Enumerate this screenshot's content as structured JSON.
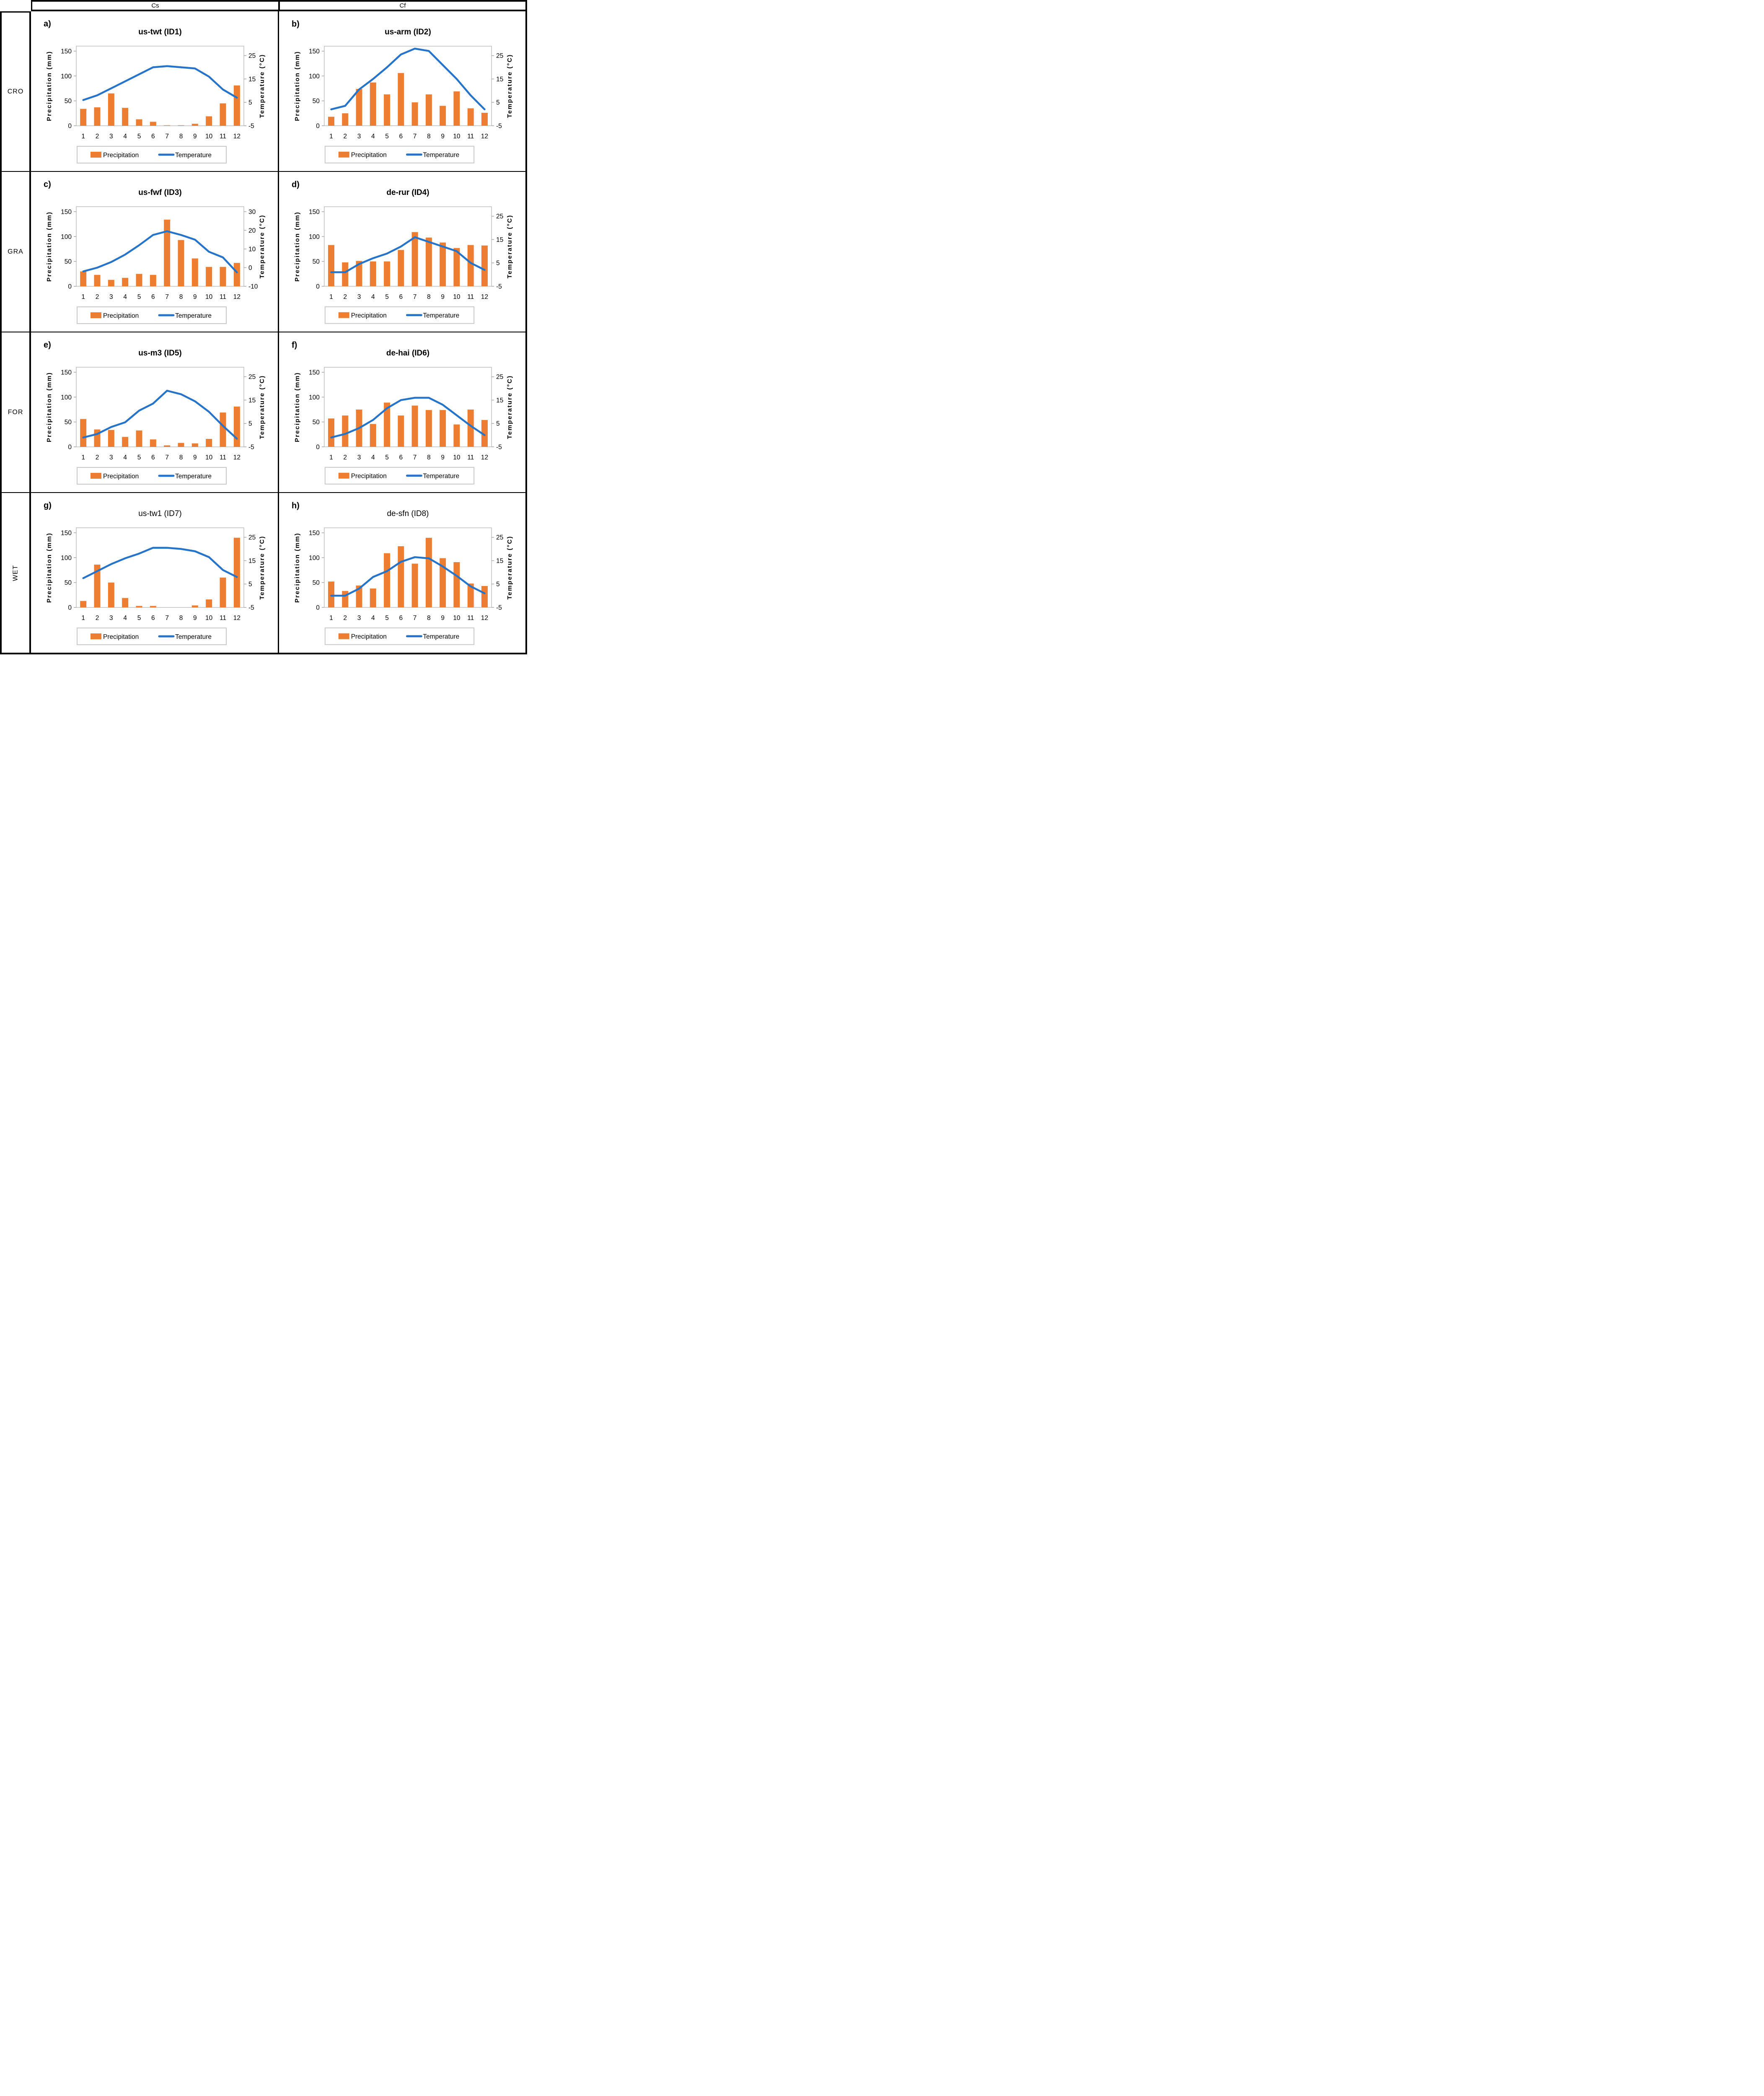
{
  "figure": {
    "col_headers": [
      "Cs",
      "Cf"
    ],
    "row_labels": [
      "CRO",
      "GRA",
      "FOR",
      "WET"
    ],
    "colors": {
      "bar_orange": "#ED7D31",
      "line_blue": "#2574C9",
      "plot_border_gray": "#BFBFBF",
      "tick_mark_gray": "#A6A6A6",
      "legend_border_gray": "#C9C9C9",
      "table_border_black": "#000000"
    },
    "legend": {
      "precipitation_label": "Precipitation",
      "temperature_label": "Temperature"
    },
    "axis_labels": {
      "left": "Precipitation (mm)",
      "right": "Temperature (°C)"
    }
  },
  "chart_data": [
    {
      "type": "bar+line",
      "panel": "a)",
      "title": "us-twt (ID1)",
      "title_bold": true,
      "row": 0,
      "col": 0,
      "categories": [
        1,
        2,
        3,
        4,
        5,
        6,
        7,
        8,
        9,
        10,
        11,
        12
      ],
      "series": [
        {
          "name": "Precipitation",
          "unit": "mm",
          "values": [
            34,
            37,
            65,
            36,
            13,
            8,
            1,
            1,
            4,
            19,
            45,
            81
          ]
        },
        {
          "name": "Temperature",
          "unit": "°C",
          "values": [
            6,
            8,
            11,
            14,
            17,
            20,
            20.5,
            20,
            19.5,
            16,
            10.5,
            7
          ]
        }
      ],
      "left_ticks": [
        0,
        50,
        100,
        150
      ],
      "right_ticks": [
        -5,
        5,
        15,
        25
      ],
      "ylim_mm": [
        0,
        160
      ],
      "right_axis_map": {
        "deg_at_0mm": -5,
        "mm_per_deg": 4.7
      },
      "grid": false,
      "legend_position": "bottom"
    },
    {
      "type": "bar+line",
      "panel": "b)",
      "title": "us-arm (ID2)",
      "title_bold": true,
      "row": 0,
      "col": 1,
      "categories": [
        1,
        2,
        3,
        4,
        5,
        6,
        7,
        8,
        9,
        10,
        11,
        12
      ],
      "series": [
        {
          "name": "Precipitation",
          "unit": "mm",
          "values": [
            18,
            25,
            74,
            87,
            63,
            106,
            47,
            63,
            40,
            69,
            35,
            26
          ]
        },
        {
          "name": "Temperature",
          "unit": "°C",
          "values": [
            2,
            3.5,
            10.5,
            15,
            20,
            25.5,
            28,
            27,
            21,
            15,
            8,
            2
          ]
        }
      ],
      "left_ticks": [
        0,
        50,
        100,
        150
      ],
      "right_ticks": [
        -5,
        5,
        15,
        25
      ],
      "ylim_mm": [
        0,
        160
      ],
      "right_axis_map": {
        "deg_at_0mm": -5,
        "mm_per_deg": 4.7
      },
      "grid": false,
      "legend_position": "bottom"
    },
    {
      "type": "bar+line",
      "panel": "c)",
      "title": "us-fwf (ID3)",
      "title_bold": true,
      "row": 1,
      "col": 0,
      "categories": [
        1,
        2,
        3,
        4,
        5,
        6,
        7,
        8,
        9,
        10,
        11,
        12
      ],
      "series": [
        {
          "name": "Precipitation",
          "unit": "mm",
          "values": [
            30,
            23,
            13,
            17,
            25,
            23,
            134,
            93,
            56,
            39,
            39,
            47
          ]
        },
        {
          "name": "Temperature",
          "unit": "°C",
          "values": [
            -2,
            0,
            3,
            7,
            12,
            17.5,
            19.5,
            17.5,
            15,
            8.5,
            5.5,
            -2.5
          ]
        }
      ],
      "left_ticks": [
        0,
        50,
        100,
        150
      ],
      "right_ticks": [
        -10,
        0,
        10,
        20,
        30
      ],
      "ylim_mm": [
        0,
        160
      ],
      "right_axis_map": {
        "deg_at_0mm": -10,
        "mm_per_deg": 3.75
      },
      "grid": false,
      "legend_position": "bottom"
    },
    {
      "type": "bar+line",
      "panel": "d)",
      "title": "de-rur (ID4)",
      "title_bold": true,
      "row": 1,
      "col": 1,
      "categories": [
        1,
        2,
        3,
        4,
        5,
        6,
        7,
        8,
        9,
        10,
        11,
        12
      ],
      "series": [
        {
          "name": "Precipitation",
          "unit": "mm",
          "values": [
            83,
            48,
            51,
            50,
            50,
            73,
            109,
            98,
            88,
            77,
            83,
            82
          ]
        },
        {
          "name": "Temperature",
          "unit": "°C",
          "values": [
            1,
            1,
            4.5,
            7,
            9,
            12,
            16,
            14,
            12,
            10,
            5,
            2
          ]
        }
      ],
      "left_ticks": [
        0,
        50,
        100,
        150
      ],
      "right_ticks": [
        -5,
        5,
        15,
        25
      ],
      "ylim_mm": [
        0,
        160
      ],
      "right_axis_map": {
        "deg_at_0mm": -5,
        "mm_per_deg": 4.7
      },
      "grid": false,
      "legend_position": "bottom"
    },
    {
      "type": "bar+line",
      "panel": "e)",
      "title": "us-m3 (ID5)",
      "title_bold": true,
      "row": 2,
      "col": 0,
      "categories": [
        1,
        2,
        3,
        4,
        5,
        6,
        7,
        8,
        9,
        10,
        11,
        12
      ],
      "series": [
        {
          "name": "Precipitation",
          "unit": "mm",
          "values": [
            56,
            35,
            34,
            20,
            33,
            15,
            3,
            8,
            7,
            16,
            69,
            81
          ]
        },
        {
          "name": "Temperature",
          "unit": "°C",
          "values": [
            -1,
            0.5,
            3.5,
            5.5,
            10.5,
            13.5,
            19,
            17.5,
            14.5,
            10,
            4,
            -1.5
          ]
        }
      ],
      "left_ticks": [
        0,
        50,
        100,
        150
      ],
      "right_ticks": [
        -5,
        5,
        15,
        25
      ],
      "ylim_mm": [
        0,
        160
      ],
      "right_axis_map": {
        "deg_at_0mm": -5,
        "mm_per_deg": 4.7
      },
      "grid": false,
      "legend_position": "bottom"
    },
    {
      "type": "bar+line",
      "panel": "f)",
      "title": "de-hai (ID6)",
      "title_bold": true,
      "row": 2,
      "col": 1,
      "categories": [
        1,
        2,
        3,
        4,
        5,
        6,
        7,
        8,
        9,
        10,
        11,
        12
      ],
      "series": [
        {
          "name": "Precipitation",
          "unit": "mm",
          "values": [
            57,
            63,
            75,
            46,
            89,
            63,
            83,
            74,
            74,
            45,
            75,
            54
          ]
        },
        {
          "name": "Temperature",
          "unit": "°C",
          "values": [
            -1,
            0.5,
            3,
            6.5,
            11.5,
            15,
            16,
            16,
            13,
            8.5,
            4,
            0
          ]
        }
      ],
      "left_ticks": [
        0,
        50,
        100,
        150
      ],
      "right_ticks": [
        -5,
        5,
        15,
        25
      ],
      "ylim_mm": [
        0,
        160
      ],
      "right_axis_map": {
        "deg_at_0mm": -5,
        "mm_per_deg": 4.7
      },
      "grid": false,
      "legend_position": "bottom"
    },
    {
      "type": "bar+line",
      "panel": "g)",
      "title": "us-tw1 (ID7)",
      "title_bold": false,
      "row": 3,
      "col": 0,
      "categories": [
        1,
        2,
        3,
        4,
        5,
        6,
        7,
        8,
        9,
        10,
        11,
        12
      ],
      "series": [
        {
          "name": "Precipitation",
          "unit": "mm",
          "values": [
            13,
            86,
            50,
            19,
            3,
            3,
            0,
            0,
            4,
            16,
            60,
            140
          ]
        },
        {
          "name": "Temperature",
          "unit": "°C",
          "values": [
            7.5,
            10.5,
            13.5,
            16,
            18,
            20.5,
            20.5,
            20,
            19,
            16.5,
            11,
            8
          ]
        }
      ],
      "left_ticks": [
        0,
        50,
        100,
        150
      ],
      "right_ticks": [
        -5,
        5,
        15,
        25
      ],
      "ylim_mm": [
        0,
        160
      ],
      "right_axis_map": {
        "deg_at_0mm": -5,
        "mm_per_deg": 4.7
      },
      "grid": false,
      "legend_position": "bottom"
    },
    {
      "type": "bar+line",
      "panel": "h)",
      "title": "de-sfn (ID8)",
      "title_bold": false,
      "row": 3,
      "col": 1,
      "categories": [
        1,
        2,
        3,
        4,
        5,
        6,
        7,
        8,
        9,
        10,
        11,
        12
      ],
      "series": [
        {
          "name": "Precipitation",
          "unit": "mm",
          "values": [
            52,
            33,
            44,
            38,
            109,
            123,
            88,
            140,
            99,
            91,
            48,
            43
          ]
        },
        {
          "name": "Temperature",
          "unit": "°C",
          "values": [
            0,
            0,
            3,
            8,
            10.5,
            14.5,
            16.5,
            16,
            12.5,
            8.5,
            4,
            1
          ]
        }
      ],
      "left_ticks": [
        0,
        50,
        100,
        150
      ],
      "right_ticks": [
        -5,
        5,
        15,
        25
      ],
      "ylim_mm": [
        0,
        160
      ],
      "right_axis_map": {
        "deg_at_0mm": -5,
        "mm_per_deg": 4.7
      },
      "grid": false,
      "legend_position": "bottom"
    }
  ]
}
